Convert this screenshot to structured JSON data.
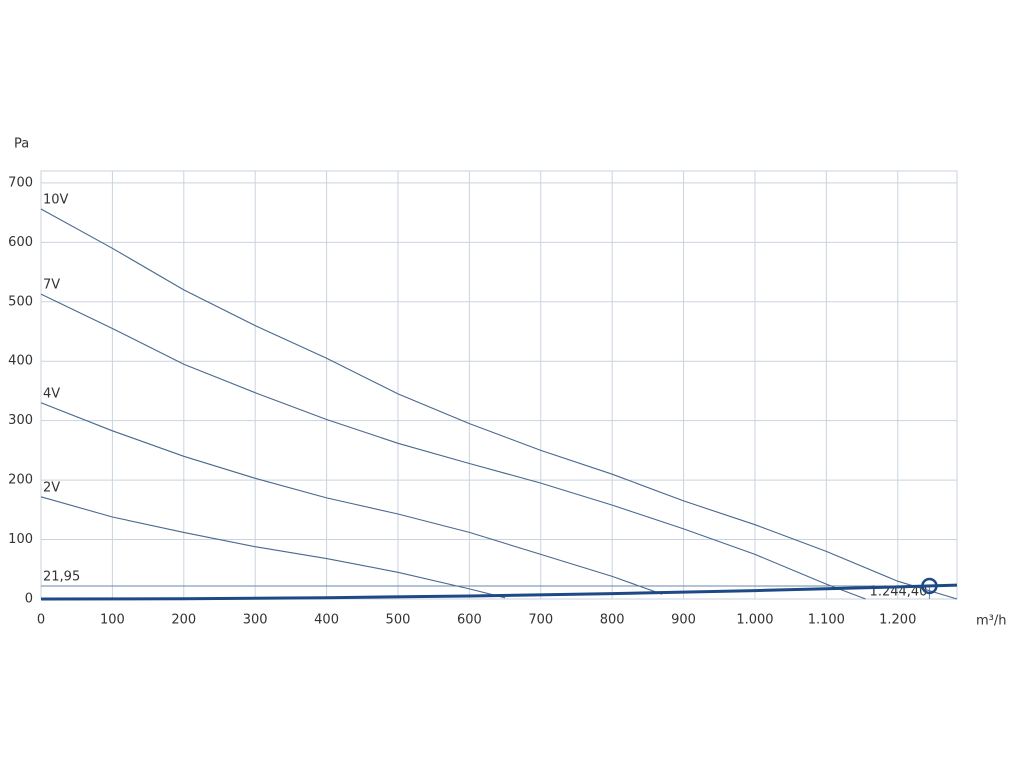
{
  "chart_data": {
    "type": "line",
    "y_label": "Pa",
    "x_label": "m³/h",
    "xlim": [
      0,
      1283
    ],
    "ylim": [
      0,
      720
    ],
    "xticks": [
      0,
      100,
      200,
      300,
      400,
      500,
      600,
      700,
      800,
      900,
      {
        "value": 1000,
        "label": "1.000"
      },
      {
        "value": 1100,
        "label": "1.100"
      },
      {
        "value": 1200,
        "label": "1.200"
      }
    ],
    "yticks": [
      0,
      100,
      200,
      300,
      400,
      500,
      600,
      700
    ],
    "grid": true,
    "series": [
      {
        "name": "10V",
        "color": "#4a6890",
        "x": [
          0,
          100,
          200,
          300,
          400,
          500,
          600,
          700,
          800,
          900,
          1000,
          1100,
          1200,
          1283
        ],
        "values": [
          656,
          590,
          520,
          460,
          405,
          345,
          295,
          250,
          210,
          165,
          125,
          80,
          30,
          0
        ]
      },
      {
        "name": "7V",
        "color": "#4a6890",
        "x": [
          0,
          100,
          200,
          300,
          400,
          500,
          600,
          700,
          800,
          900,
          1000,
          1100,
          1155
        ],
        "values": [
          513,
          455,
          395,
          347,
          302,
          262,
          228,
          195,
          158,
          118,
          75,
          25,
          0
        ]
      },
      {
        "name": "4V",
        "color": "#4a6890",
        "x": [
          0,
          100,
          200,
          300,
          400,
          500,
          600,
          700,
          800,
          870
        ],
        "values": [
          330,
          283,
          240,
          203,
          170,
          143,
          112,
          75,
          38,
          8
        ]
      },
      {
        "name": "2V",
        "color": "#4a6890",
        "x": [
          0,
          100,
          200,
          300,
          400,
          500,
          600,
          650
        ],
        "values": [
          172,
          138,
          112,
          88,
          68,
          45,
          17,
          2
        ]
      }
    ],
    "system_curve": {
      "color": "#1d4a85",
      "x": [
        0,
        200,
        400,
        600,
        800,
        1000,
        1200,
        1283
      ],
      "values": [
        0,
        0.57,
        2.27,
        5.1,
        9.08,
        14.18,
        20.4,
        23.3
      ]
    },
    "operating_point": {
      "x": 1244.4,
      "y": 21.95,
      "x_label": "1.244,40",
      "y_label": "21,95",
      "color": "#1d4a85"
    }
  }
}
